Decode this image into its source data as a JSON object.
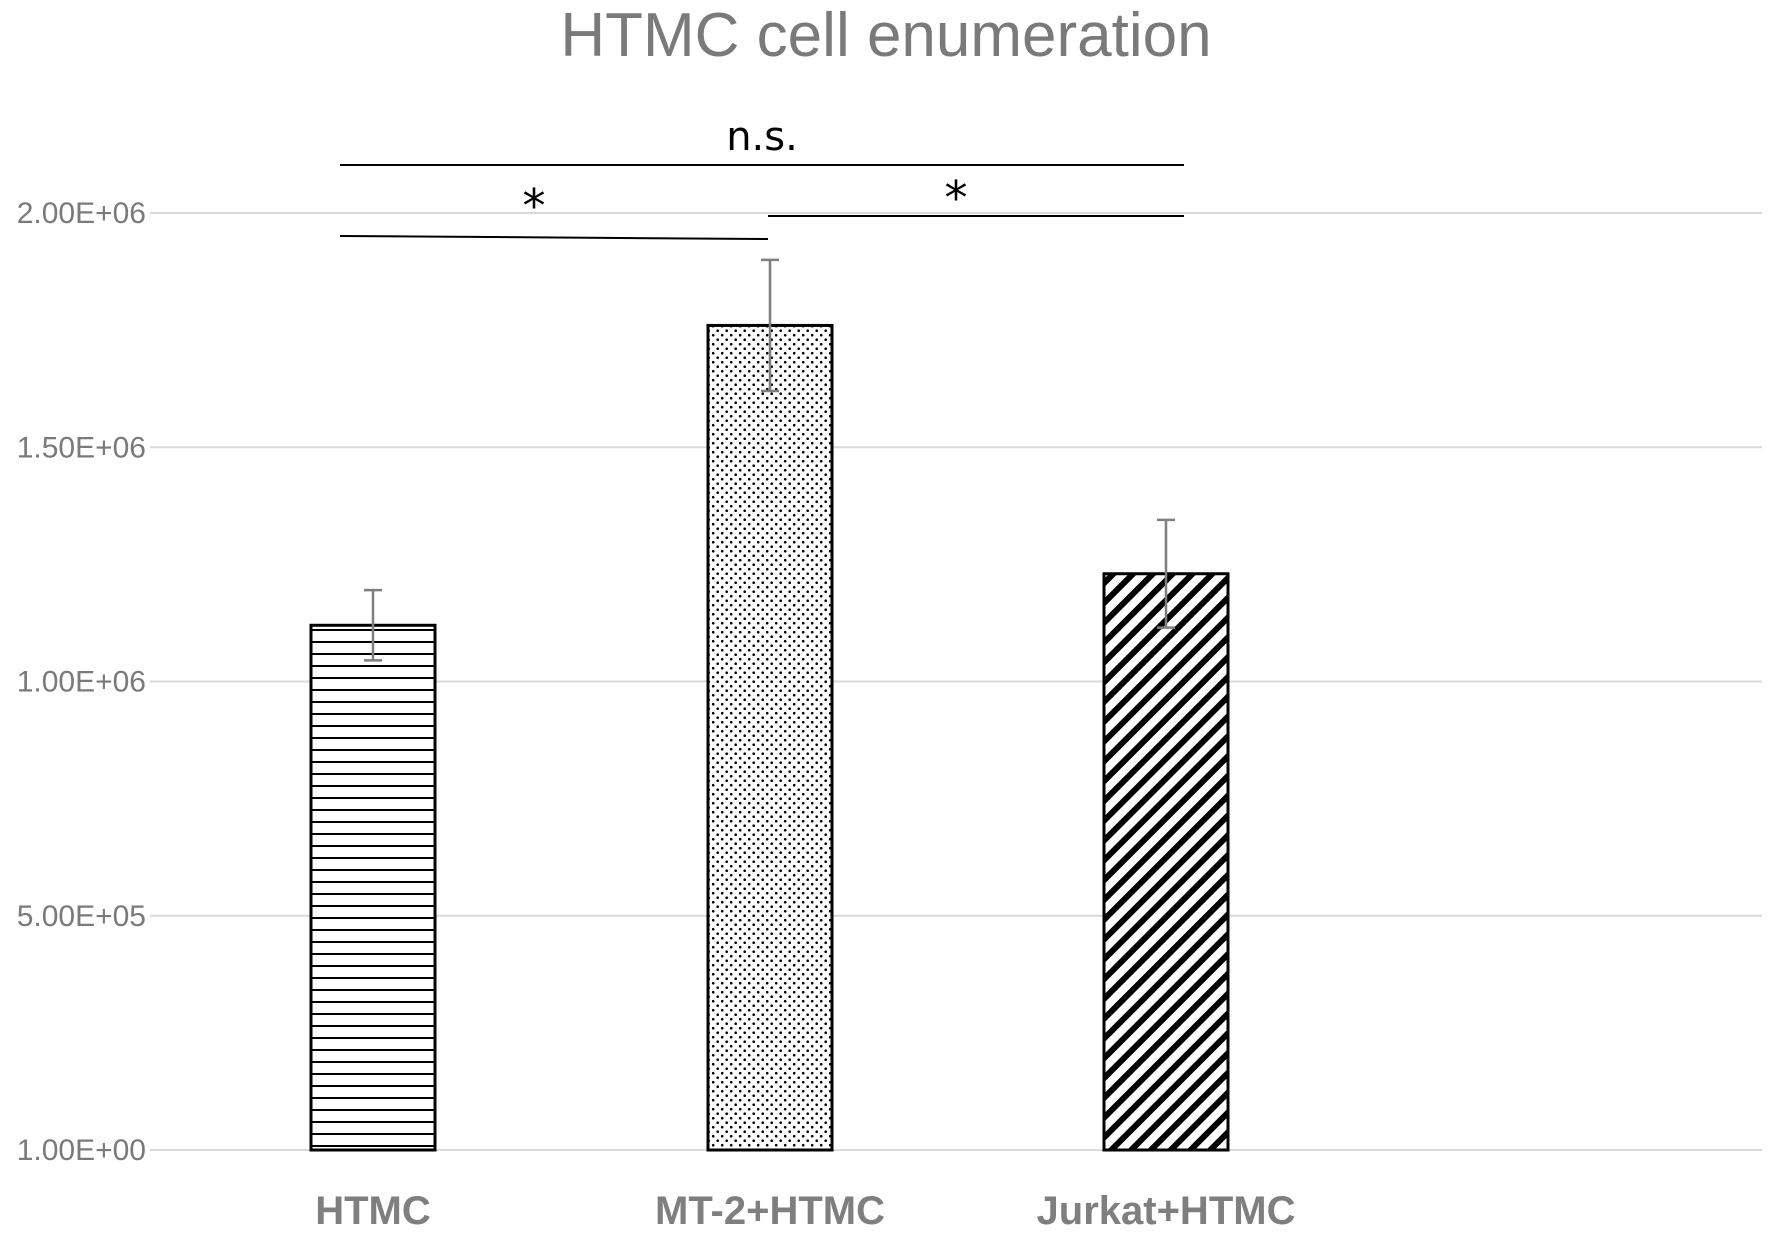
{
  "chart_data": {
    "type": "bar",
    "title": "HTMC cell enumeration",
    "categories": [
      "HTMC",
      "MT-2+HTMC",
      "Jurkat+HTMC"
    ],
    "values": [
      1120000,
      1760000,
      1230000
    ],
    "errors": [
      75000,
      140000,
      115000
    ],
    "ylim": [
      1,
      2200000
    ],
    "yticks": [
      {
        "value": 1,
        "label": "1.00E+00"
      },
      {
        "value": 500000,
        "label": "5.00E+05"
      },
      {
        "value": 1000000,
        "label": "1.00E+06"
      },
      {
        "value": 1500000,
        "label": "1.50E+06"
      },
      {
        "value": 2000000,
        "label": "2.00E+06"
      }
    ],
    "grid": true,
    "bar_patterns": [
      "horizontal-lines",
      "dots",
      "diagonal-lines"
    ],
    "significance": [
      {
        "from": 0,
        "to": 2,
        "label": "n.s."
      },
      {
        "from": 0,
        "to": 1,
        "label": "*"
      },
      {
        "from": 1,
        "to": 2,
        "label": "*"
      }
    ],
    "colors": {
      "text": "#7a7a7a",
      "grid": "#d9d9d9",
      "bar_stroke": "#000000",
      "error_bar": "#7f7f7f"
    }
  }
}
